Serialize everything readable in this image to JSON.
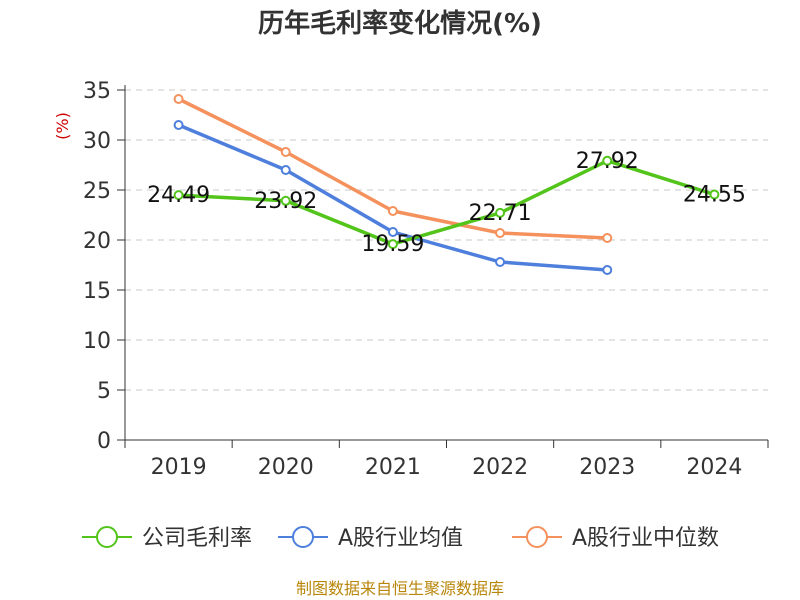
{
  "chart_data": {
    "type": "line",
    "title": "历年毛利率变化情况(%)",
    "ylabel": "(%)",
    "xlabel": "",
    "categories": [
      "2019",
      "2020",
      "2021",
      "2022",
      "2023",
      "2024"
    ],
    "ylim": [
      0,
      35
    ],
    "yticks": [
      0,
      5,
      10,
      15,
      20,
      25,
      30,
      35
    ],
    "grid": true,
    "legend_position": "bottom",
    "series": [
      {
        "name": "公司毛利率",
        "color": "#52c41a",
        "values": [
          24.49,
          23.92,
          19.59,
          22.71,
          27.92,
          24.55
        ],
        "labels": [
          "24.49",
          "23.92",
          "19.59",
          "22.71",
          "27.92",
          "24.55"
        ]
      },
      {
        "name": "A股行业均值",
        "color": "#4e7fdc",
        "values": [
          31.5,
          27.0,
          20.8,
          17.8,
          17.0,
          null
        ]
      },
      {
        "name": "A股行业中位数",
        "color": "#f4915c",
        "values": [
          34.1,
          28.8,
          22.9,
          20.7,
          20.2,
          null
        ]
      }
    ],
    "source": "制图数据来自恒生聚源数据库"
  }
}
